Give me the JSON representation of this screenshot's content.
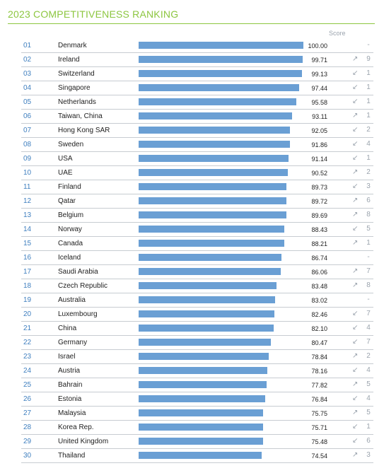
{
  "title": "2023 COMPETITIVENESS RANKING",
  "score_header": "Score",
  "colors": {
    "title": "#8cc63f",
    "rank": "#3f7fbf",
    "bar": "#6a9fd4",
    "muted": "#9aa3ad"
  },
  "chart_data": {
    "type": "bar",
    "orientation": "horizontal",
    "title": "2023 COMPETITIVENESS RANKING",
    "value_label": "Score",
    "xlim": [
      0,
      100
    ],
    "rows": [
      {
        "rank": "01",
        "country": "Denmark",
        "score": 100.0,
        "score_text": "100.00",
        "direction": "",
        "change": "-"
      },
      {
        "rank": "02",
        "country": "Ireland",
        "score": 99.71,
        "score_text": "99.71",
        "direction": "up",
        "change": "9"
      },
      {
        "rank": "03",
        "country": "Switzerland",
        "score": 99.13,
        "score_text": "99.13",
        "direction": "down",
        "change": "1"
      },
      {
        "rank": "04",
        "country": "Singapore",
        "score": 97.44,
        "score_text": "97.44",
        "direction": "down",
        "change": "1"
      },
      {
        "rank": "05",
        "country": "Netherlands",
        "score": 95.58,
        "score_text": "95.58",
        "direction": "down",
        "change": "1"
      },
      {
        "rank": "06",
        "country": "Taiwan, China",
        "score": 93.11,
        "score_text": "93.11",
        "direction": "up",
        "change": "1"
      },
      {
        "rank": "07",
        "country": "Hong Kong SAR",
        "score": 92.05,
        "score_text": "92.05",
        "direction": "down",
        "change": "2"
      },
      {
        "rank": "08",
        "country": "Sweden",
        "score": 91.86,
        "score_text": "91.86",
        "direction": "down",
        "change": "4"
      },
      {
        "rank": "09",
        "country": "USA",
        "score": 91.14,
        "score_text": "91.14",
        "direction": "down",
        "change": "1"
      },
      {
        "rank": "10",
        "country": "UAE",
        "score": 90.52,
        "score_text": "90.52",
        "direction": "up",
        "change": "2"
      },
      {
        "rank": "11",
        "country": "Finland",
        "score": 89.73,
        "score_text": "89.73",
        "direction": "down",
        "change": "3"
      },
      {
        "rank": "12",
        "country": "Qatar",
        "score": 89.72,
        "score_text": "89.72",
        "direction": "up",
        "change": "6"
      },
      {
        "rank": "13",
        "country": "Belgium",
        "score": 89.69,
        "score_text": "89.69",
        "direction": "up",
        "change": "8"
      },
      {
        "rank": "14",
        "country": "Norway",
        "score": 88.43,
        "score_text": "88.43",
        "direction": "down",
        "change": "5"
      },
      {
        "rank": "15",
        "country": "Canada",
        "score": 88.21,
        "score_text": "88.21",
        "direction": "up",
        "change": "1"
      },
      {
        "rank": "16",
        "country": "Iceland",
        "score": 86.74,
        "score_text": "86.74",
        "direction": "",
        "change": "-"
      },
      {
        "rank": "17",
        "country": "Saudi Arabia",
        "score": 86.06,
        "score_text": "86.06",
        "direction": "up",
        "change": "7"
      },
      {
        "rank": "18",
        "country": "Czech Republic",
        "score": 83.48,
        "score_text": "83.48",
        "direction": "up",
        "change": "8"
      },
      {
        "rank": "19",
        "country": "Australia",
        "score": 83.02,
        "score_text": "83.02",
        "direction": "",
        "change": "-"
      },
      {
        "rank": "20",
        "country": "Luxembourg",
        "score": 82.46,
        "score_text": "82.46",
        "direction": "down",
        "change": "7"
      },
      {
        "rank": "21",
        "country": "China",
        "score": 82.1,
        "score_text": "82.10",
        "direction": "down",
        "change": "4"
      },
      {
        "rank": "22",
        "country": "Germany",
        "score": 80.47,
        "score_text": "80.47",
        "direction": "down",
        "change": "7"
      },
      {
        "rank": "23",
        "country": "Israel",
        "score": 78.84,
        "score_text": "78.84",
        "direction": "up",
        "change": "2"
      },
      {
        "rank": "24",
        "country": "Austria",
        "score": 78.16,
        "score_text": "78.16",
        "direction": "down",
        "change": "4"
      },
      {
        "rank": "25",
        "country": "Bahrain",
        "score": 77.82,
        "score_text": "77.82",
        "direction": "up",
        "change": "5"
      },
      {
        "rank": "26",
        "country": "Estonia",
        "score": 76.84,
        "score_text": "76.84",
        "direction": "down",
        "change": "4"
      },
      {
        "rank": "27",
        "country": "Malaysia",
        "score": 75.75,
        "score_text": "75.75",
        "direction": "up",
        "change": "5"
      },
      {
        "rank": "28",
        "country": "Korea Rep.",
        "score": 75.71,
        "score_text": "75.71",
        "direction": "down",
        "change": "1"
      },
      {
        "rank": "29",
        "country": "United Kingdom",
        "score": 75.48,
        "score_text": "75.48",
        "direction": "down",
        "change": "6"
      },
      {
        "rank": "30",
        "country": "Thailand",
        "score": 74.54,
        "score_text": "74.54",
        "direction": "up",
        "change": "3"
      }
    ]
  }
}
